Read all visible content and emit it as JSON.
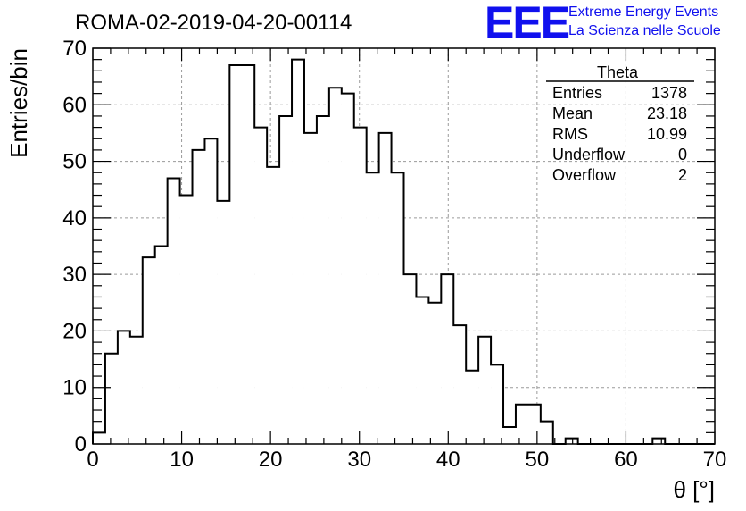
{
  "title": "ROMA-02-2019-04-20-00114",
  "logo": {
    "mark": "EEE",
    "line1": "Extreme Energy Events",
    "line2": "La Scienza nelle Scuole",
    "color": "#1010ee"
  },
  "stats": {
    "header": "Theta",
    "rows": [
      {
        "label": "Entries",
        "value": "1378"
      },
      {
        "label": "Mean",
        "value": "23.18"
      },
      {
        "label": "RMS",
        "value": "10.99"
      },
      {
        "label": "Underflow",
        "value": "0"
      },
      {
        "label": "Overflow",
        "value": "2"
      }
    ]
  },
  "chart_data": {
    "type": "bar",
    "histogram": true,
    "title": "ROMA-02-2019-04-20-00114",
    "xlabel": "θ [°]",
    "ylabel": "Entries/bin",
    "xlim": [
      0,
      70
    ],
    "ylim": [
      0,
      70
    ],
    "bin_width": 1.4,
    "x_ticks": [
      0,
      10,
      20,
      30,
      40,
      50,
      60,
      70
    ],
    "y_ticks": [
      0,
      10,
      20,
      30,
      40,
      50,
      60,
      70
    ],
    "grid": true,
    "values": [
      2,
      16,
      20,
      19,
      33,
      35,
      47,
      44,
      52,
      54,
      43,
      67,
      67,
      56,
      49,
      58,
      68,
      55,
      58,
      63,
      62,
      56,
      48,
      55,
      48,
      30,
      26,
      25,
      30,
      21,
      13,
      19,
      14,
      3,
      7,
      7,
      4,
      0,
      1,
      0,
      0,
      0,
      0,
      0,
      0,
      1,
      0,
      0,
      0,
      0
    ]
  }
}
